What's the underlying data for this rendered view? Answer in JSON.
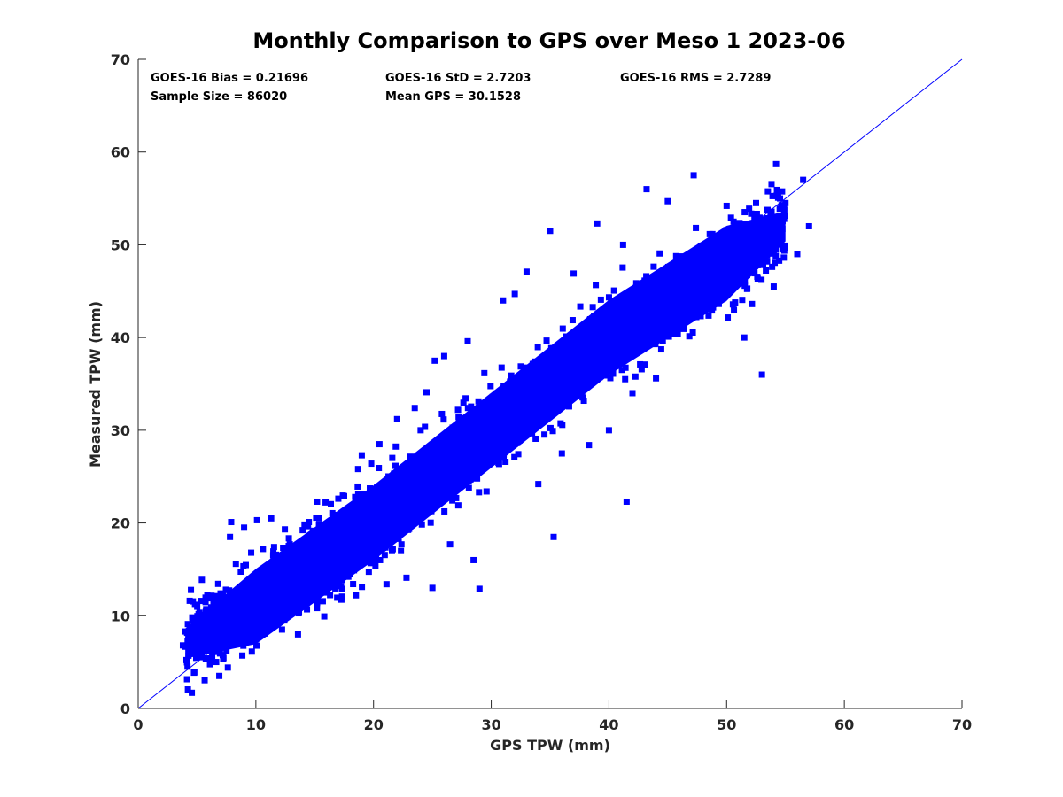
{
  "chart_data": {
    "type": "scatter",
    "title": "Monthly Comparison to GPS over Meso 1 2023-06",
    "xlabel": "GPS TPW (mm)",
    "ylabel": "Measured TPW (mm)",
    "xlim": [
      0,
      70
    ],
    "ylim": [
      0,
      70
    ],
    "xticks": [
      0,
      10,
      20,
      30,
      40,
      50,
      60,
      70
    ],
    "yticks": [
      0,
      10,
      20,
      30,
      40,
      50,
      60,
      70
    ],
    "grid": false,
    "marker": "square",
    "colors": {
      "points": "#0000ff",
      "reference_line": "#0000ff",
      "axes": "#262626"
    },
    "reference_line": {
      "x": [
        0,
        70
      ],
      "y": [
        0,
        70
      ]
    },
    "stats": {
      "bias": "GOES-16 Bias = 0.21696",
      "std": "GOES-16 StD = 2.7203",
      "rms": "GOES-16 RMS = 2.7289",
      "sample_size": "Sample Size = 86020",
      "mean_gps": "Mean GPS = 30.1528"
    },
    "density_trend": {
      "x": [
        4,
        10,
        20,
        30,
        40,
        50,
        55
      ],
      "y": [
        7,
        11,
        20,
        30,
        40,
        48,
        52
      ],
      "approx_spread": 2.7
    },
    "points": [
      [
        3.8,
        6.8
      ],
      [
        4.2,
        7.3
      ],
      [
        5.0,
        7.1
      ],
      [
        5.5,
        8.2
      ],
      [
        6.1,
        9.8
      ],
      [
        6.5,
        10.7
      ],
      [
        7.0,
        12.4
      ],
      [
        7.2,
        9.0
      ],
      [
        7.5,
        6.2
      ],
      [
        7.8,
        18.5
      ],
      [
        7.9,
        20.1
      ],
      [
        8.3,
        15.6
      ],
      [
        9.0,
        19.5
      ],
      [
        9.6,
        16.8
      ],
      [
        10.1,
        20.3
      ],
      [
        10.6,
        17.2
      ],
      [
        11.3,
        20.5
      ],
      [
        12.0,
        14.3
      ],
      [
        13.6,
        17.0
      ],
      [
        14.5,
        20.1
      ],
      [
        15.2,
        22.3
      ],
      [
        16.0,
        12.5
      ],
      [
        17.5,
        22.9
      ],
      [
        18.5,
        12.2
      ],
      [
        19.0,
        27.3
      ],
      [
        19.8,
        26.4
      ],
      [
        20.5,
        28.5
      ],
      [
        21.1,
        13.4
      ],
      [
        22.0,
        31.2
      ],
      [
        22.8,
        14.1
      ],
      [
        23.5,
        32.4
      ],
      [
        24.0,
        30.0
      ],
      [
        24.5,
        34.1
      ],
      [
        25.0,
        13.0
      ],
      [
        25.2,
        37.5
      ],
      [
        26.0,
        38.0
      ],
      [
        26.5,
        17.7
      ],
      [
        27.2,
        21.9
      ],
      [
        28.0,
        39.6
      ],
      [
        28.5,
        16.0
      ],
      [
        29.0,
        12.9
      ],
      [
        29.6,
        23.4
      ],
      [
        30.5,
        34.0
      ],
      [
        31.0,
        44.0
      ],
      [
        32.0,
        44.7
      ],
      [
        33.0,
        47.1
      ],
      [
        34.0,
        24.2
      ],
      [
        35.0,
        51.5
      ],
      [
        35.3,
        18.5
      ],
      [
        36.0,
        27.5
      ],
      [
        37.0,
        46.9
      ],
      [
        38.3,
        28.4
      ],
      [
        39.0,
        52.3
      ],
      [
        40.0,
        30.0
      ],
      [
        41.2,
        50.0
      ],
      [
        41.5,
        22.3
      ],
      [
        42.0,
        34.0
      ],
      [
        43.2,
        56.0
      ],
      [
        44.0,
        35.6
      ],
      [
        45.0,
        54.7
      ],
      [
        46.0,
        44.5
      ],
      [
        47.2,
        57.5
      ],
      [
        48.0,
        47.8
      ],
      [
        49.0,
        46.3
      ],
      [
        50.0,
        54.2
      ],
      [
        51.5,
        40.0
      ],
      [
        52.5,
        54.5
      ],
      [
        53.0,
        36.0
      ],
      [
        54.0,
        45.5
      ],
      [
        54.2,
        58.7
      ],
      [
        55.0,
        54.5
      ],
      [
        56.0,
        49.0
      ],
      [
        56.5,
        57.0
      ],
      [
        57.0,
        52.0
      ]
    ]
  }
}
